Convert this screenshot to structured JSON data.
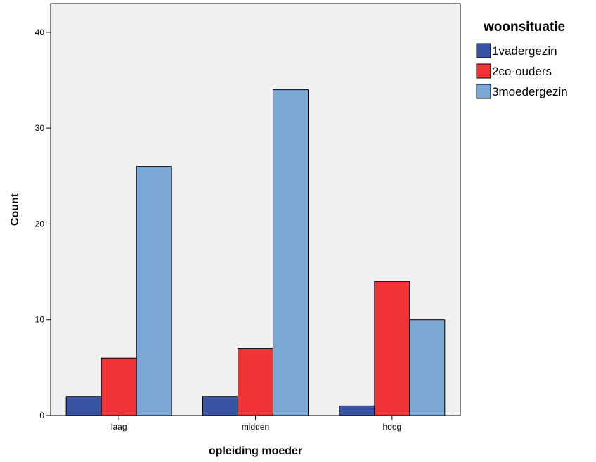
{
  "chart_data": {
    "type": "bar",
    "title": "",
    "xlabel": "opleiding moeder",
    "ylabel": "Count",
    "categories": [
      "laag",
      "midden",
      "hoog"
    ],
    "ylim": [
      0,
      43
    ],
    "yticks": [
      0,
      10,
      20,
      30,
      40
    ],
    "grid": false,
    "legend": {
      "title": "woonsituatie",
      "position": "right"
    },
    "series": [
      {
        "name": "1vadergezin",
        "color": "#3a54a4",
        "values": [
          2,
          2,
          1
        ]
      },
      {
        "name": "2co-ouders",
        "color": "#ef3337",
        "values": [
          6,
          7,
          14
        ]
      },
      {
        "name": "3moedergezin",
        "color": "#7ba7d5",
        "values": [
          26,
          34,
          10
        ]
      }
    ],
    "plot_background": "#f0f0f0"
  }
}
